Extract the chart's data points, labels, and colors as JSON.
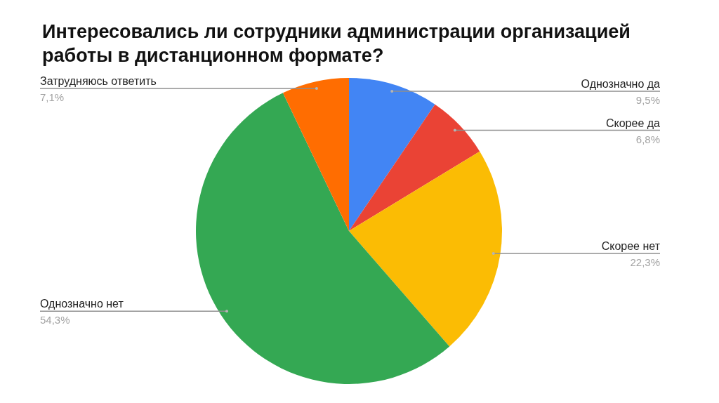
{
  "chart_data": {
    "type": "pie",
    "title": "Интересовались ли сотрудники администрации организацией работы в дистанционном формате?",
    "categories": [
      "Однозначно да",
      "Скорее да",
      "Скорее нет",
      "Однозначно нет",
      "Затрудняюсь ответить"
    ],
    "values": [
      9.5,
      6.8,
      22.3,
      54.3,
      7.1
    ],
    "colors": [
      "#4285f4",
      "#ea4335",
      "#fbbc04",
      "#34a853",
      "#ff6d01"
    ],
    "value_labels": [
      "9,5%",
      "6,8%",
      "22,3%",
      "54,3%",
      "7,1%"
    ]
  }
}
